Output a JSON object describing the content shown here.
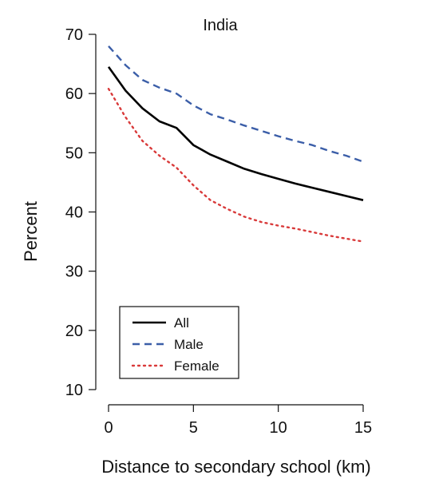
{
  "chart_data": {
    "type": "line",
    "title": "India",
    "xlabel": "Distance to secondary school (km)",
    "ylabel": "Percent",
    "xlim": [
      0,
      15
    ],
    "ylim": [
      10,
      70
    ],
    "xticks": [
      0,
      5,
      10,
      15
    ],
    "yticks": [
      10,
      20,
      30,
      40,
      50,
      60,
      70
    ],
    "grid": false,
    "legend_position": "bottom-left",
    "series": [
      {
        "name": "All",
        "color": "#000000",
        "line_style": "solid",
        "x": [
          0,
          1,
          2,
          3,
          4,
          5,
          6,
          7,
          8,
          9,
          10,
          11,
          12,
          13,
          14,
          15
        ],
        "y": [
          64.5,
          60.5,
          57.5,
          55.3,
          54.2,
          51.3,
          49.7,
          48.5,
          47.3,
          46.4,
          45.6,
          44.8,
          44.1,
          43.4,
          42.7,
          42.0
        ]
      },
      {
        "name": "Male",
        "color": "#3b5ea8",
        "line_style": "dashed",
        "x": [
          0,
          1,
          2,
          3,
          4,
          5,
          6,
          7,
          8,
          9,
          10,
          11,
          12,
          13,
          14,
          15
        ],
        "y": [
          68.0,
          64.8,
          62.3,
          61.0,
          60.0,
          58.0,
          56.5,
          55.6,
          54.6,
          53.7,
          52.8,
          52.0,
          51.3,
          50.3,
          49.5,
          48.5
        ]
      },
      {
        "name": "Female",
        "color": "#d93a3a",
        "line_style": "dotted",
        "x": [
          0,
          1,
          2,
          3,
          4,
          5,
          6,
          7,
          8,
          9,
          10,
          11,
          12,
          13,
          14,
          15
        ],
        "y": [
          60.8,
          56.0,
          52.0,
          49.5,
          47.5,
          44.5,
          42.0,
          40.5,
          39.2,
          38.3,
          37.7,
          37.2,
          36.6,
          36.0,
          35.5,
          35.0
        ]
      }
    ]
  }
}
